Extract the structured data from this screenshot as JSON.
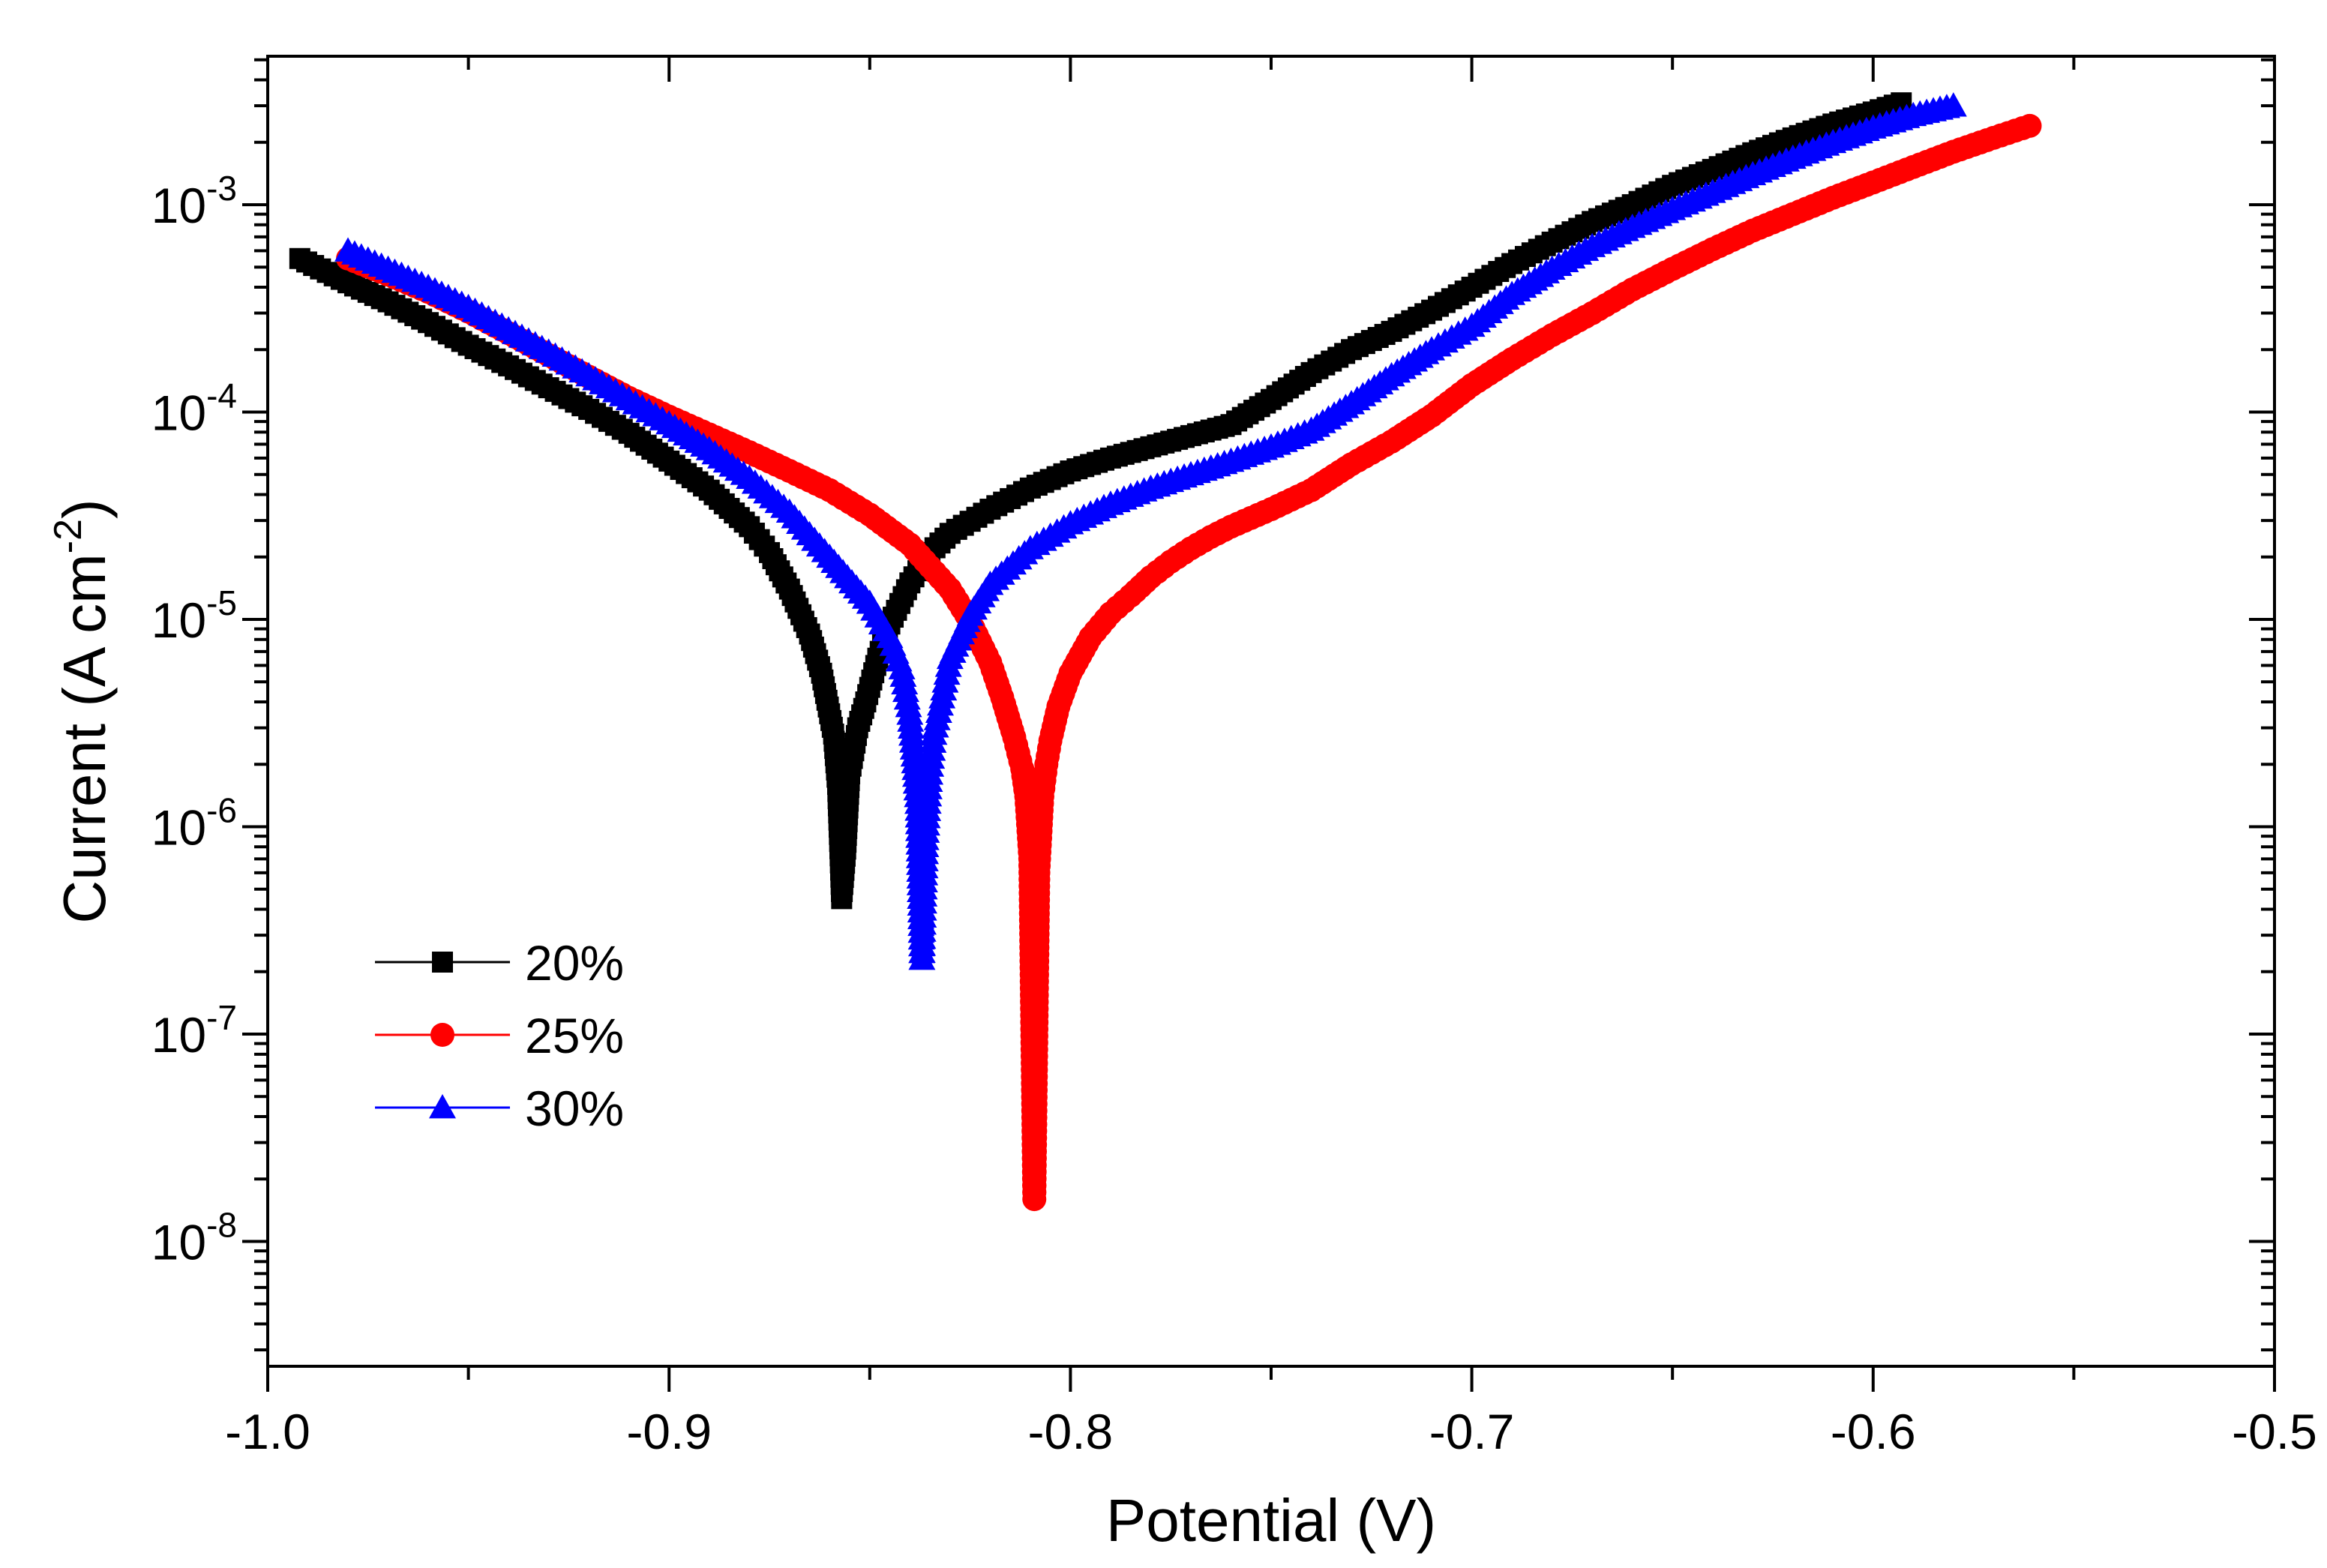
{
  "chart_data": {
    "type": "line",
    "title": "",
    "xlabel": "Potential (V)",
    "ylabel": {
      "main": "Current (A cm",
      "superscript": "-2",
      "close": ")"
    },
    "xscale": "linear",
    "yscale": "log",
    "xlim": [
      -1.0,
      -0.5
    ],
    "ylim": [
      2.5e-09,
      0.0052
    ],
    "x_ticks": [
      {
        "value": -1.0,
        "label": "-1.0"
      },
      {
        "value": -0.9,
        "label": "-0.9"
      },
      {
        "value": -0.8,
        "label": "-0.8"
      },
      {
        "value": -0.7,
        "label": "-0.7"
      },
      {
        "value": -0.6,
        "label": "-0.6"
      },
      {
        "value": -0.5,
        "label": "-0.5"
      }
    ],
    "y_ticks": [
      {
        "exp": -3,
        "base": "10",
        "sup": "-3"
      },
      {
        "exp": -4,
        "base": "10",
        "sup": "-4"
      },
      {
        "exp": -5,
        "base": "10",
        "sup": "-5"
      },
      {
        "exp": -6,
        "base": "10",
        "sup": "-6"
      },
      {
        "exp": -7,
        "base": "10",
        "sup": "-7"
      },
      {
        "exp": -8,
        "base": "10",
        "sup": "-8"
      }
    ],
    "grid": false,
    "legend_position": "lower-left",
    "series": [
      {
        "name": "20%",
        "color": "#000000",
        "marker": "square",
        "points": [
          [
            -0.992,
            0.00055
          ],
          [
            -0.98,
            0.00042
          ],
          [
            -0.97,
            0.00034
          ],
          [
            -0.96,
            0.00027
          ],
          [
            -0.95,
            0.00021
          ],
          [
            -0.94,
            0.000167
          ],
          [
            -0.93,
            0.000131
          ],
          [
            -0.92,
            0.000103
          ],
          [
            -0.91,
            7.9e-05
          ],
          [
            -0.9,
            5.8e-05
          ],
          [
            -0.89,
            4.2e-05
          ],
          [
            -0.88,
            2.8e-05
          ],
          [
            -0.875,
            2.1e-05
          ],
          [
            -0.87,
            1.4e-05
          ],
          [
            -0.865,
            8.5e-06
          ],
          [
            -0.862,
            5.5e-06
          ],
          [
            -0.859,
            2.8e-06
          ],
          [
            -0.858,
            1.6e-06
          ],
          [
            -0.857,
            4.5e-07
          ],
          [
            -0.856,
            7.8e-07
          ],
          [
            -0.855,
            1.8e-06
          ],
          [
            -0.853,
            3e-06
          ],
          [
            -0.851,
            4e-06
          ],
          [
            -0.848,
            6.5e-06
          ],
          [
            -0.845,
            9.5e-06
          ],
          [
            -0.84,
            1.5e-05
          ],
          [
            -0.835,
            2.1e-05
          ],
          [
            -0.83,
            2.6e-05
          ],
          [
            -0.82,
            3.4e-05
          ],
          [
            -0.81,
            4.3e-05
          ],
          [
            -0.8,
            5.2e-05
          ],
          [
            -0.79,
            6e-05
          ],
          [
            -0.78,
            6.8e-05
          ],
          [
            -0.77,
            7.7e-05
          ],
          [
            -0.76,
            8.7e-05
          ],
          [
            -0.75,
            0.000115
          ],
          [
            -0.74,
            0.000155
          ],
          [
            -0.73,
            0.0002
          ],
          [
            -0.72,
            0.000245
          ],
          [
            -0.71,
            0.00031
          ],
          [
            -0.7,
            0.0004
          ],
          [
            -0.69,
            0.00052
          ],
          [
            -0.68,
            0.00066
          ],
          [
            -0.67,
            0.00083
          ],
          [
            -0.66,
            0.001
          ],
          [
            -0.65,
            0.00124
          ],
          [
            -0.64,
            0.00148
          ],
          [
            -0.63,
            0.00178
          ],
          [
            -0.62,
            0.0021
          ],
          [
            -0.61,
            0.00245
          ],
          [
            -0.6,
            0.0028
          ],
          [
            -0.593,
            0.0031
          ]
        ]
      },
      {
        "name": "25%",
        "color": "#ff0000",
        "marker": "circle",
        "points": [
          [
            -0.98,
            0.00055
          ],
          [
            -0.97,
            0.00046
          ],
          [
            -0.96,
            0.00038
          ],
          [
            -0.95,
            0.000305
          ],
          [
            -0.94,
            0.00024
          ],
          [
            -0.93,
            0.000188
          ],
          [
            -0.92,
            0.000148
          ],
          [
            -0.91,
            0.000117
          ],
          [
            -0.9,
            9.5e-05
          ],
          [
            -0.89,
            7.8e-05
          ],
          [
            -0.88,
            6.4e-05
          ],
          [
            -0.87,
            5.2e-05
          ],
          [
            -0.86,
            4.2e-05
          ],
          [
            -0.85,
            3.2e-05
          ],
          [
            -0.84,
            2.3e-05
          ],
          [
            -0.83,
            1.4e-05
          ],
          [
            -0.825,
            9.8e-06
          ],
          [
            -0.82,
            6.2e-06
          ],
          [
            -0.817,
            4.2e-06
          ],
          [
            -0.814,
            2.7e-06
          ],
          [
            -0.812,
            1.9e-06
          ],
          [
            -0.811,
            1.4e-06
          ],
          [
            -0.81,
            7e-07
          ],
          [
            -0.809,
            1.6e-08
          ],
          [
            -0.808,
            6e-07
          ],
          [
            -0.807,
            1.4e-06
          ],
          [
            -0.806,
            2e-06
          ],
          [
            -0.805,
            2.6e-06
          ],
          [
            -0.803,
            3.8e-06
          ],
          [
            -0.8,
            5.5e-06
          ],
          [
            -0.795,
            8.2e-06
          ],
          [
            -0.79,
            1.07e-05
          ],
          [
            -0.785,
            1.3e-05
          ],
          [
            -0.78,
            1.6e-05
          ],
          [
            -0.775,
            1.9e-05
          ],
          [
            -0.77,
            2.2e-05
          ],
          [
            -0.765,
            2.5e-05
          ],
          [
            -0.76,
            2.8e-05
          ],
          [
            -0.75,
            3.4e-05
          ],
          [
            -0.74,
            4.2e-05
          ],
          [
            -0.73,
            5.6e-05
          ],
          [
            -0.72,
            7.2e-05
          ],
          [
            -0.71,
            9.6e-05
          ],
          [
            -0.7,
            0.000135
          ],
          [
            -0.69,
            0.00018
          ],
          [
            -0.68,
            0.000235
          ],
          [
            -0.67,
            0.0003
          ],
          [
            -0.66,
            0.00039
          ],
          [
            -0.65,
            0.00049
          ],
          [
            -0.64,
            0.00061
          ],
          [
            -0.63,
            0.00075
          ],
          [
            -0.62,
            0.0009
          ],
          [
            -0.61,
            0.00108
          ],
          [
            -0.6,
            0.00128
          ],
          [
            -0.59,
            0.00152
          ],
          [
            -0.58,
            0.0018
          ],
          [
            -0.57,
            0.0021
          ],
          [
            -0.561,
            0.0024
          ]
        ]
      },
      {
        "name": "30%",
        "color": "#0000ff",
        "marker": "triangle",
        "points": [
          [
            -0.98,
            0.0006
          ],
          [
            -0.97,
            0.00049
          ],
          [
            -0.96,
            0.0004
          ],
          [
            -0.95,
            0.00032
          ],
          [
            -0.94,
            0.00025
          ],
          [
            -0.93,
            0.000195
          ],
          [
            -0.92,
            0.00015
          ],
          [
            -0.91,
            0.000115
          ],
          [
            -0.9,
            8.8e-05
          ],
          [
            -0.89,
            6.6e-05
          ],
          [
            -0.88,
            4.8e-05
          ],
          [
            -0.87,
            3.3e-05
          ],
          [
            -0.86,
            2e-05
          ],
          [
            -0.85,
            1.2e-05
          ],
          [
            -0.845,
            8.2e-06
          ],
          [
            -0.842,
            5.8e-06
          ],
          [
            -0.84,
            3.5e-06
          ],
          [
            -0.839,
            2.2e-06
          ],
          [
            -0.838,
            1.3e-06
          ],
          [
            -0.837,
            2.3e-07
          ],
          [
            -0.836,
            8.7e-07
          ],
          [
            -0.835,
            1.8e-06
          ],
          [
            -0.834,
            2.8e-06
          ],
          [
            -0.832,
            4.2e-06
          ],
          [
            -0.83,
            6.5e-06
          ],
          [
            -0.825,
            1.05e-05
          ],
          [
            -0.82,
            1.48e-05
          ],
          [
            -0.81,
            2.2e-05
          ],
          [
            -0.8,
            2.9e-05
          ],
          [
            -0.79,
            3.6e-05
          ],
          [
            -0.78,
            4.3e-05
          ],
          [
            -0.77,
            5e-05
          ],
          [
            -0.76,
            5.8e-05
          ],
          [
            -0.75,
            6.8e-05
          ],
          [
            -0.74,
            8.2e-05
          ],
          [
            -0.73,
            0.00011
          ],
          [
            -0.72,
            0.00015
          ],
          [
            -0.71,
            0.0002
          ],
          [
            -0.7,
            0.00026
          ],
          [
            -0.69,
            0.00037
          ],
          [
            -0.68,
            0.00049
          ],
          [
            -0.67,
            0.00063
          ],
          [
            -0.66,
            0.00078
          ],
          [
            -0.65,
            0.00095
          ],
          [
            -0.64,
            0.00115
          ],
          [
            -0.63,
            0.0014
          ],
          [
            -0.62,
            0.00168
          ],
          [
            -0.61,
            0.002
          ],
          [
            -0.6,
            0.00235
          ],
          [
            -0.59,
            0.0027
          ],
          [
            -0.58,
            0.003
          ]
        ]
      }
    ]
  }
}
